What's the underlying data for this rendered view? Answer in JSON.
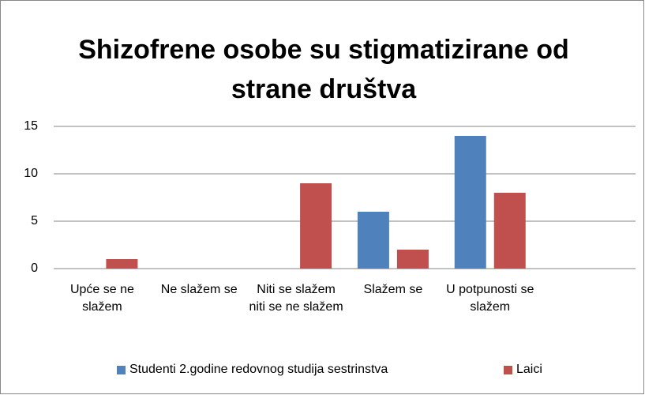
{
  "chart_data": {
    "type": "bar",
    "title": "Shizofrene osobe su stigmatizirane od strane društva",
    "categories": [
      "Upće se ne slažem",
      "Ne slažem se",
      "Niti se slažem niti se ne slažem",
      "Slažem se",
      "U potpunosti se slažem",
      null
    ],
    "series": [
      {
        "name": "Studenti 2.godine redovnog studija sestrinstva",
        "color": "#4f81bd",
        "values": [
          0,
          0,
          0,
          6,
          14,
          null
        ]
      },
      {
        "name": "Laici",
        "color": "#c0504d",
        "values": [
          1,
          0,
          9,
          2,
          8,
          null
        ]
      }
    ],
    "ylim": [
      0,
      15
    ],
    "yticks": [
      0,
      5,
      10,
      15
    ],
    "grid": true,
    "legend": "bottom"
  }
}
